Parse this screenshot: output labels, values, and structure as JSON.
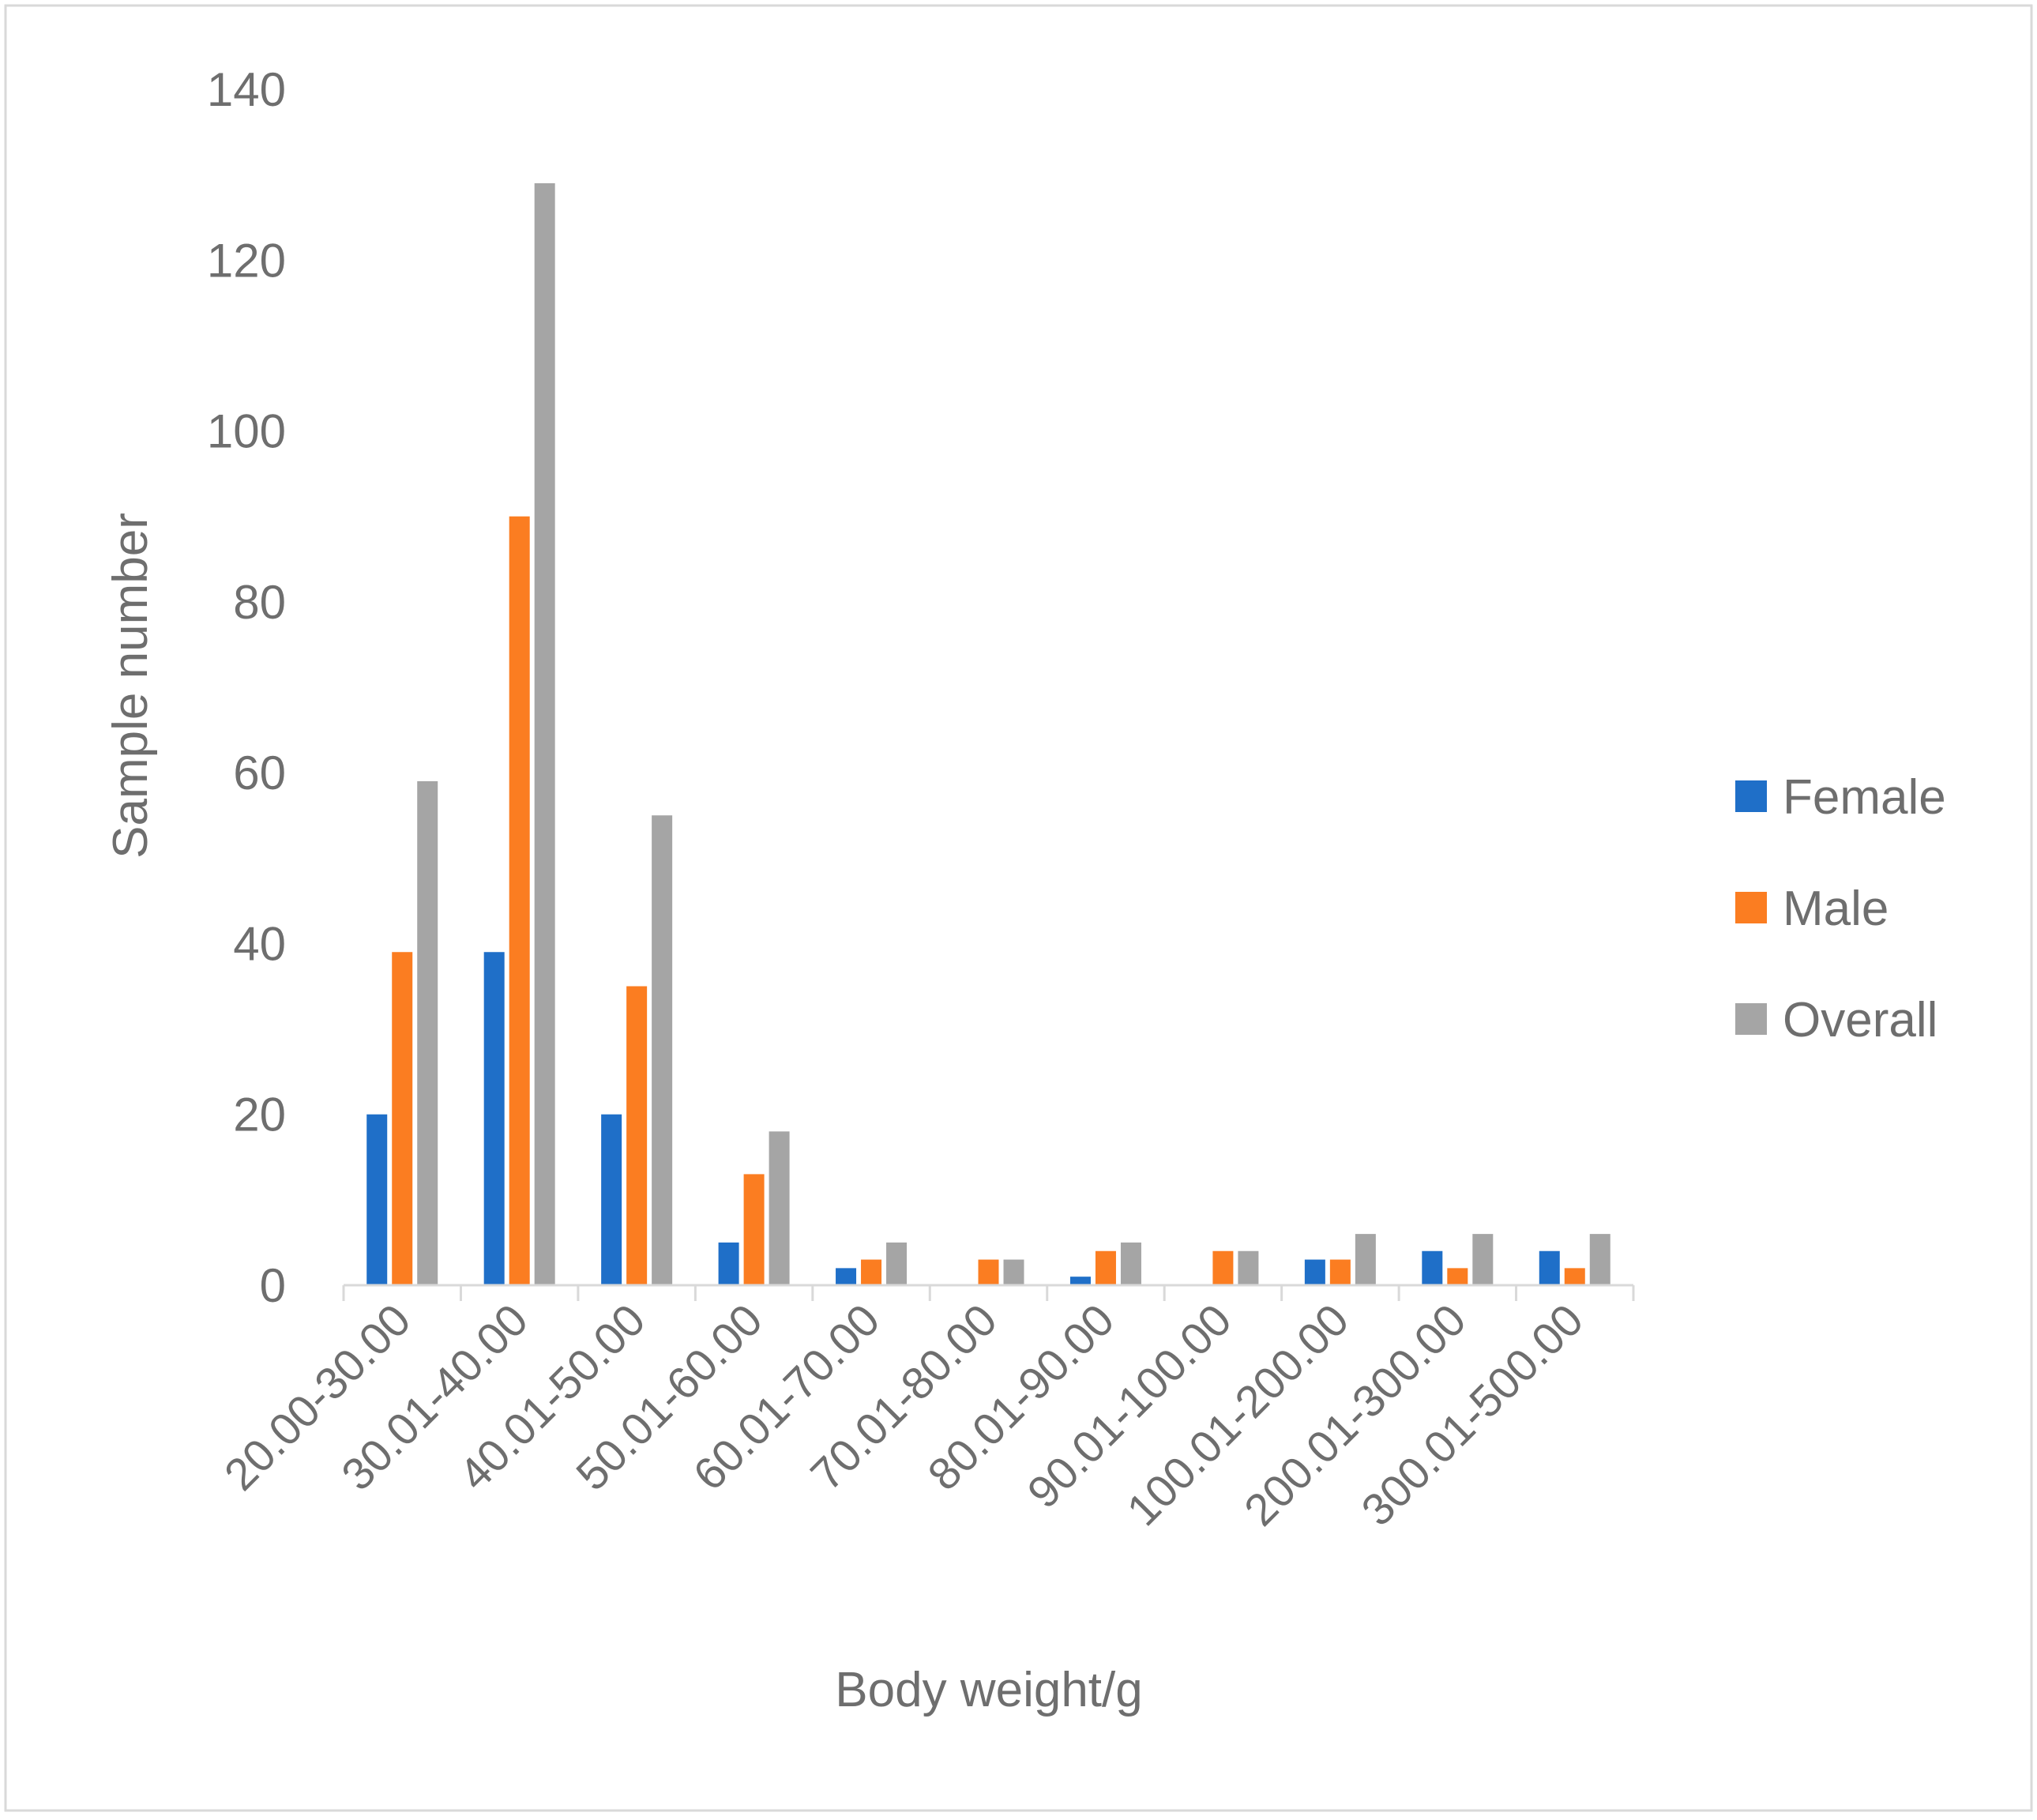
{
  "chart_data": {
    "type": "bar",
    "title": "",
    "xlabel": "Body weight/g",
    "ylabel": "Sample number",
    "ylim": [
      0,
      140
    ],
    "yticks": [
      "0",
      "20",
      "40",
      "60",
      "80",
      "100",
      "120",
      "140"
    ],
    "grid": false,
    "legend_position": "right",
    "categories": [
      "20.00-30.00",
      "30.01-40.00",
      "40.01-50.00",
      "50.01-60.00",
      "60.01-70.00",
      "70.01-80.00",
      "80.01-90.00",
      "90.01-100.00",
      "100.01-200.00",
      "200.01-300.00",
      "300.01-500.00"
    ],
    "series": [
      {
        "name": "Female",
        "color": "#1f6fc8",
        "values": [
          20,
          39,
          20,
          5,
          2,
          0,
          1,
          0,
          3,
          4,
          4
        ]
      },
      {
        "name": "Male",
        "color": "#fb7d21",
        "values": [
          39,
          90,
          35,
          13,
          3,
          3,
          4,
          4,
          3,
          2,
          2
        ]
      },
      {
        "name": "Overall",
        "color": "#a5a5a5",
        "values": [
          59,
          129,
          55,
          18,
          5,
          3,
          5,
          4,
          6,
          6,
          6
        ]
      }
    ]
  }
}
